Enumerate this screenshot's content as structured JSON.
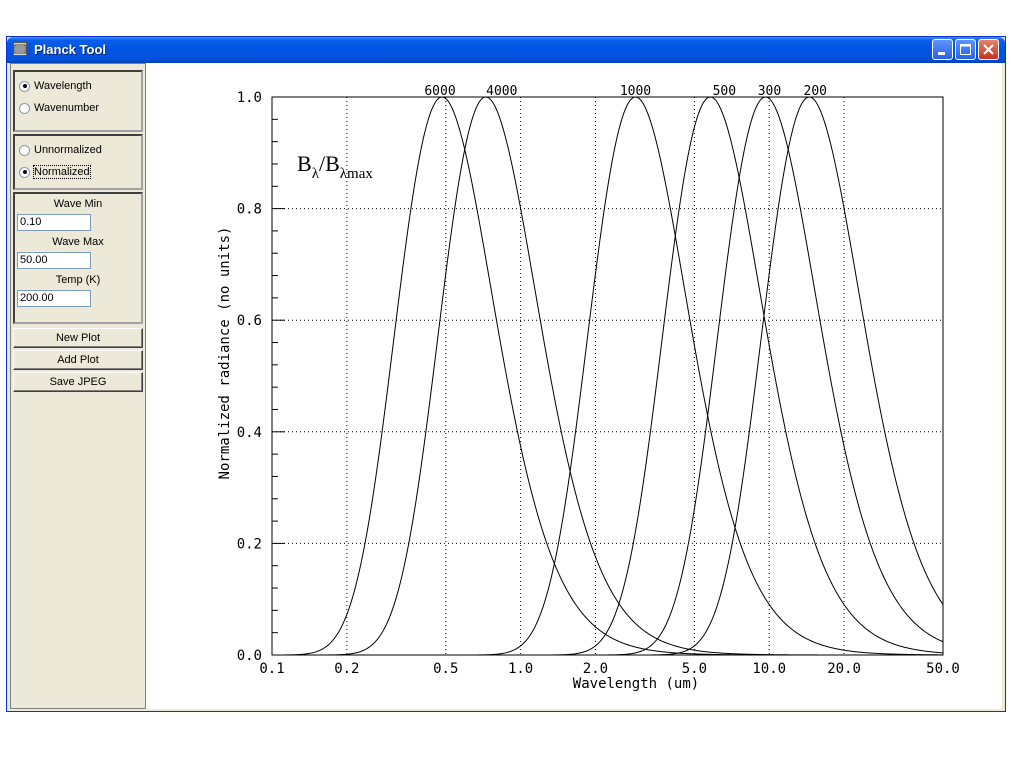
{
  "window": {
    "title": "Planck Tool"
  },
  "panel": {
    "mode_options": [
      {
        "label": "Wavelength",
        "selected": true
      },
      {
        "label": "Wavenumber",
        "selected": false
      }
    ],
    "norm_options": [
      {
        "label": "Unnormalized",
        "selected": false
      },
      {
        "label": "Normalized",
        "selected": true
      }
    ],
    "wave_min_label": "Wave Min",
    "wave_min_value": "0.10",
    "wave_max_label": "Wave Max",
    "wave_max_value": "50.00",
    "temp_label": "Temp (K)",
    "temp_value": "200.00",
    "new_plot_label": "New Plot",
    "add_plot_label": "Add Plot",
    "save_jpeg_label": "Save JPEG"
  },
  "chart_data": {
    "type": "line",
    "title": "",
    "annotation": {
      "base": "B",
      "sub1": "λ",
      "mid": "/B",
      "sub2": "λmax"
    },
    "xlabel": "Wavelength (um)",
    "ylabel": "Normalized radiance (no units)",
    "x_scale": "log",
    "xlim": [
      0.1,
      50.0
    ],
    "ylim": [
      0.0,
      1.0
    ],
    "x_ticks": [
      "0.1",
      "0.2",
      "0.5",
      "1.0",
      "2.0",
      "5.0",
      "10.0",
      "20.0",
      "50.0"
    ],
    "y_ticks": [
      "0.0",
      "0.2",
      "0.4",
      "0.6",
      "0.8",
      "1.0"
    ],
    "grid": true,
    "series": [
      {
        "name": "6000",
        "temperature_K": 6000
      },
      {
        "name": "4000",
        "temperature_K": 4000
      },
      {
        "name": "1000",
        "temperature_K": 1000
      },
      {
        "name": "500",
        "temperature_K": 500
      },
      {
        "name": "300",
        "temperature_K": 300
      },
      {
        "name": "200",
        "temperature_K": 200
      }
    ]
  }
}
